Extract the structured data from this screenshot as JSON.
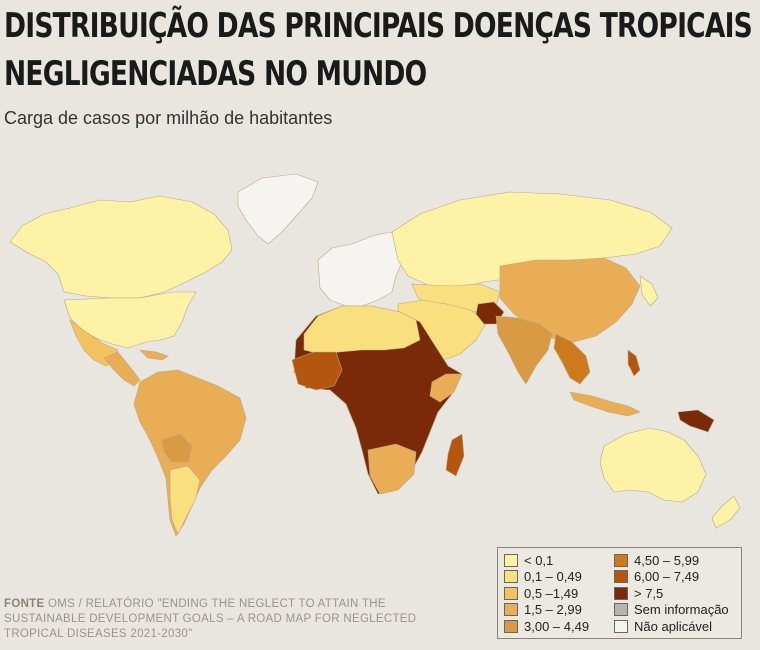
{
  "title_line1": "DISTRIBUIÇÃO DAS PRINCIPAIS DOENÇAS TROPICAIS",
  "title_line2": "NEGLIGENCIADAS NO MUNDO",
  "subtitle": "Carga de casos por milhão de habitantes",
  "source_label": "FONTE",
  "source_text": "OMS / RELATÓRIO \"ENDING THE NEGLECT TO ATTAIN THE SUSTAINABLE DEVELOPMENT GOALS – A ROAD MAP FOR NEGLECTED TROPICAL DISEASES 2021-2030\"",
  "legend": [
    {
      "label": "< 0,1",
      "color": "#fdf2a6"
    },
    {
      "label": "0,1 – 0,49",
      "color": "#fadf7e"
    },
    {
      "label": "0,5 –1,49",
      "color": "#f2c35e"
    },
    {
      "label": "1,5 – 2,99",
      "color": "#e8ad55"
    },
    {
      "label": "3,00 – 4,49",
      "color": "#d89a43"
    },
    {
      "label": "4,50 – 5,99",
      "color": "#cc7a1c"
    },
    {
      "label": "6,00 – 7,49",
      "color": "#b45510"
    },
    {
      "label": "> 7,5",
      "color": "#7a2a08"
    },
    {
      "label": "Sem informação",
      "color": "#b9b3ac"
    },
    {
      "label": "Não aplicável",
      "color": "#f6f4f1"
    }
  ]
}
